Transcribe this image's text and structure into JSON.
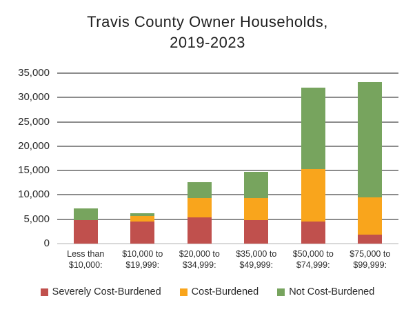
{
  "title": {
    "line1": "Travis County Owner Households,",
    "line2": "2019-2023"
  },
  "chart_data": {
    "type": "bar",
    "stacked": true,
    "title": "Travis County Owner Households, 2019-2023",
    "xlabel": "",
    "ylabel": "",
    "ylim": [
      0,
      35000
    ],
    "ytick_step": 5000,
    "ytick_labels": [
      "0",
      "5,000",
      "10,000",
      "15,000",
      "20,000",
      "25,000",
      "30,000",
      "35,000"
    ],
    "grid": true,
    "legend_position": "bottom",
    "categories": [
      [
        "Less than",
        "$10,000:"
      ],
      [
        "$10,000 to",
        "$19,999:"
      ],
      [
        "$20,000 to",
        "$34,999:"
      ],
      [
        "$35,000 to",
        "$49,999:"
      ],
      [
        "$50,000 to",
        "$74,999:"
      ],
      [
        "$75,000 to",
        "$99,999:"
      ]
    ],
    "series": [
      {
        "name": "Severely Cost-Burdened",
        "color": "#C0504D",
        "values": [
          4800,
          4500,
          5400,
          4800,
          4600,
          1800
        ]
      },
      {
        "name": "Cost-Burdened",
        "color": "#F9A51C",
        "values": [
          0,
          1100,
          4000,
          4600,
          10700,
          7700
        ]
      },
      {
        "name": "Not Cost-Burdened",
        "color": "#77A45E",
        "values": [
          2400,
          600,
          3200,
          5400,
          16700,
          23600
        ]
      }
    ],
    "stack_totals": [
      7200,
      6200,
      12600,
      14800,
      32000,
      33100
    ]
  },
  "colors": {
    "severely_cost_burdened": "#C0504D",
    "cost_burdened": "#F9A51C",
    "not_cost_burdened": "#77A45E"
  }
}
